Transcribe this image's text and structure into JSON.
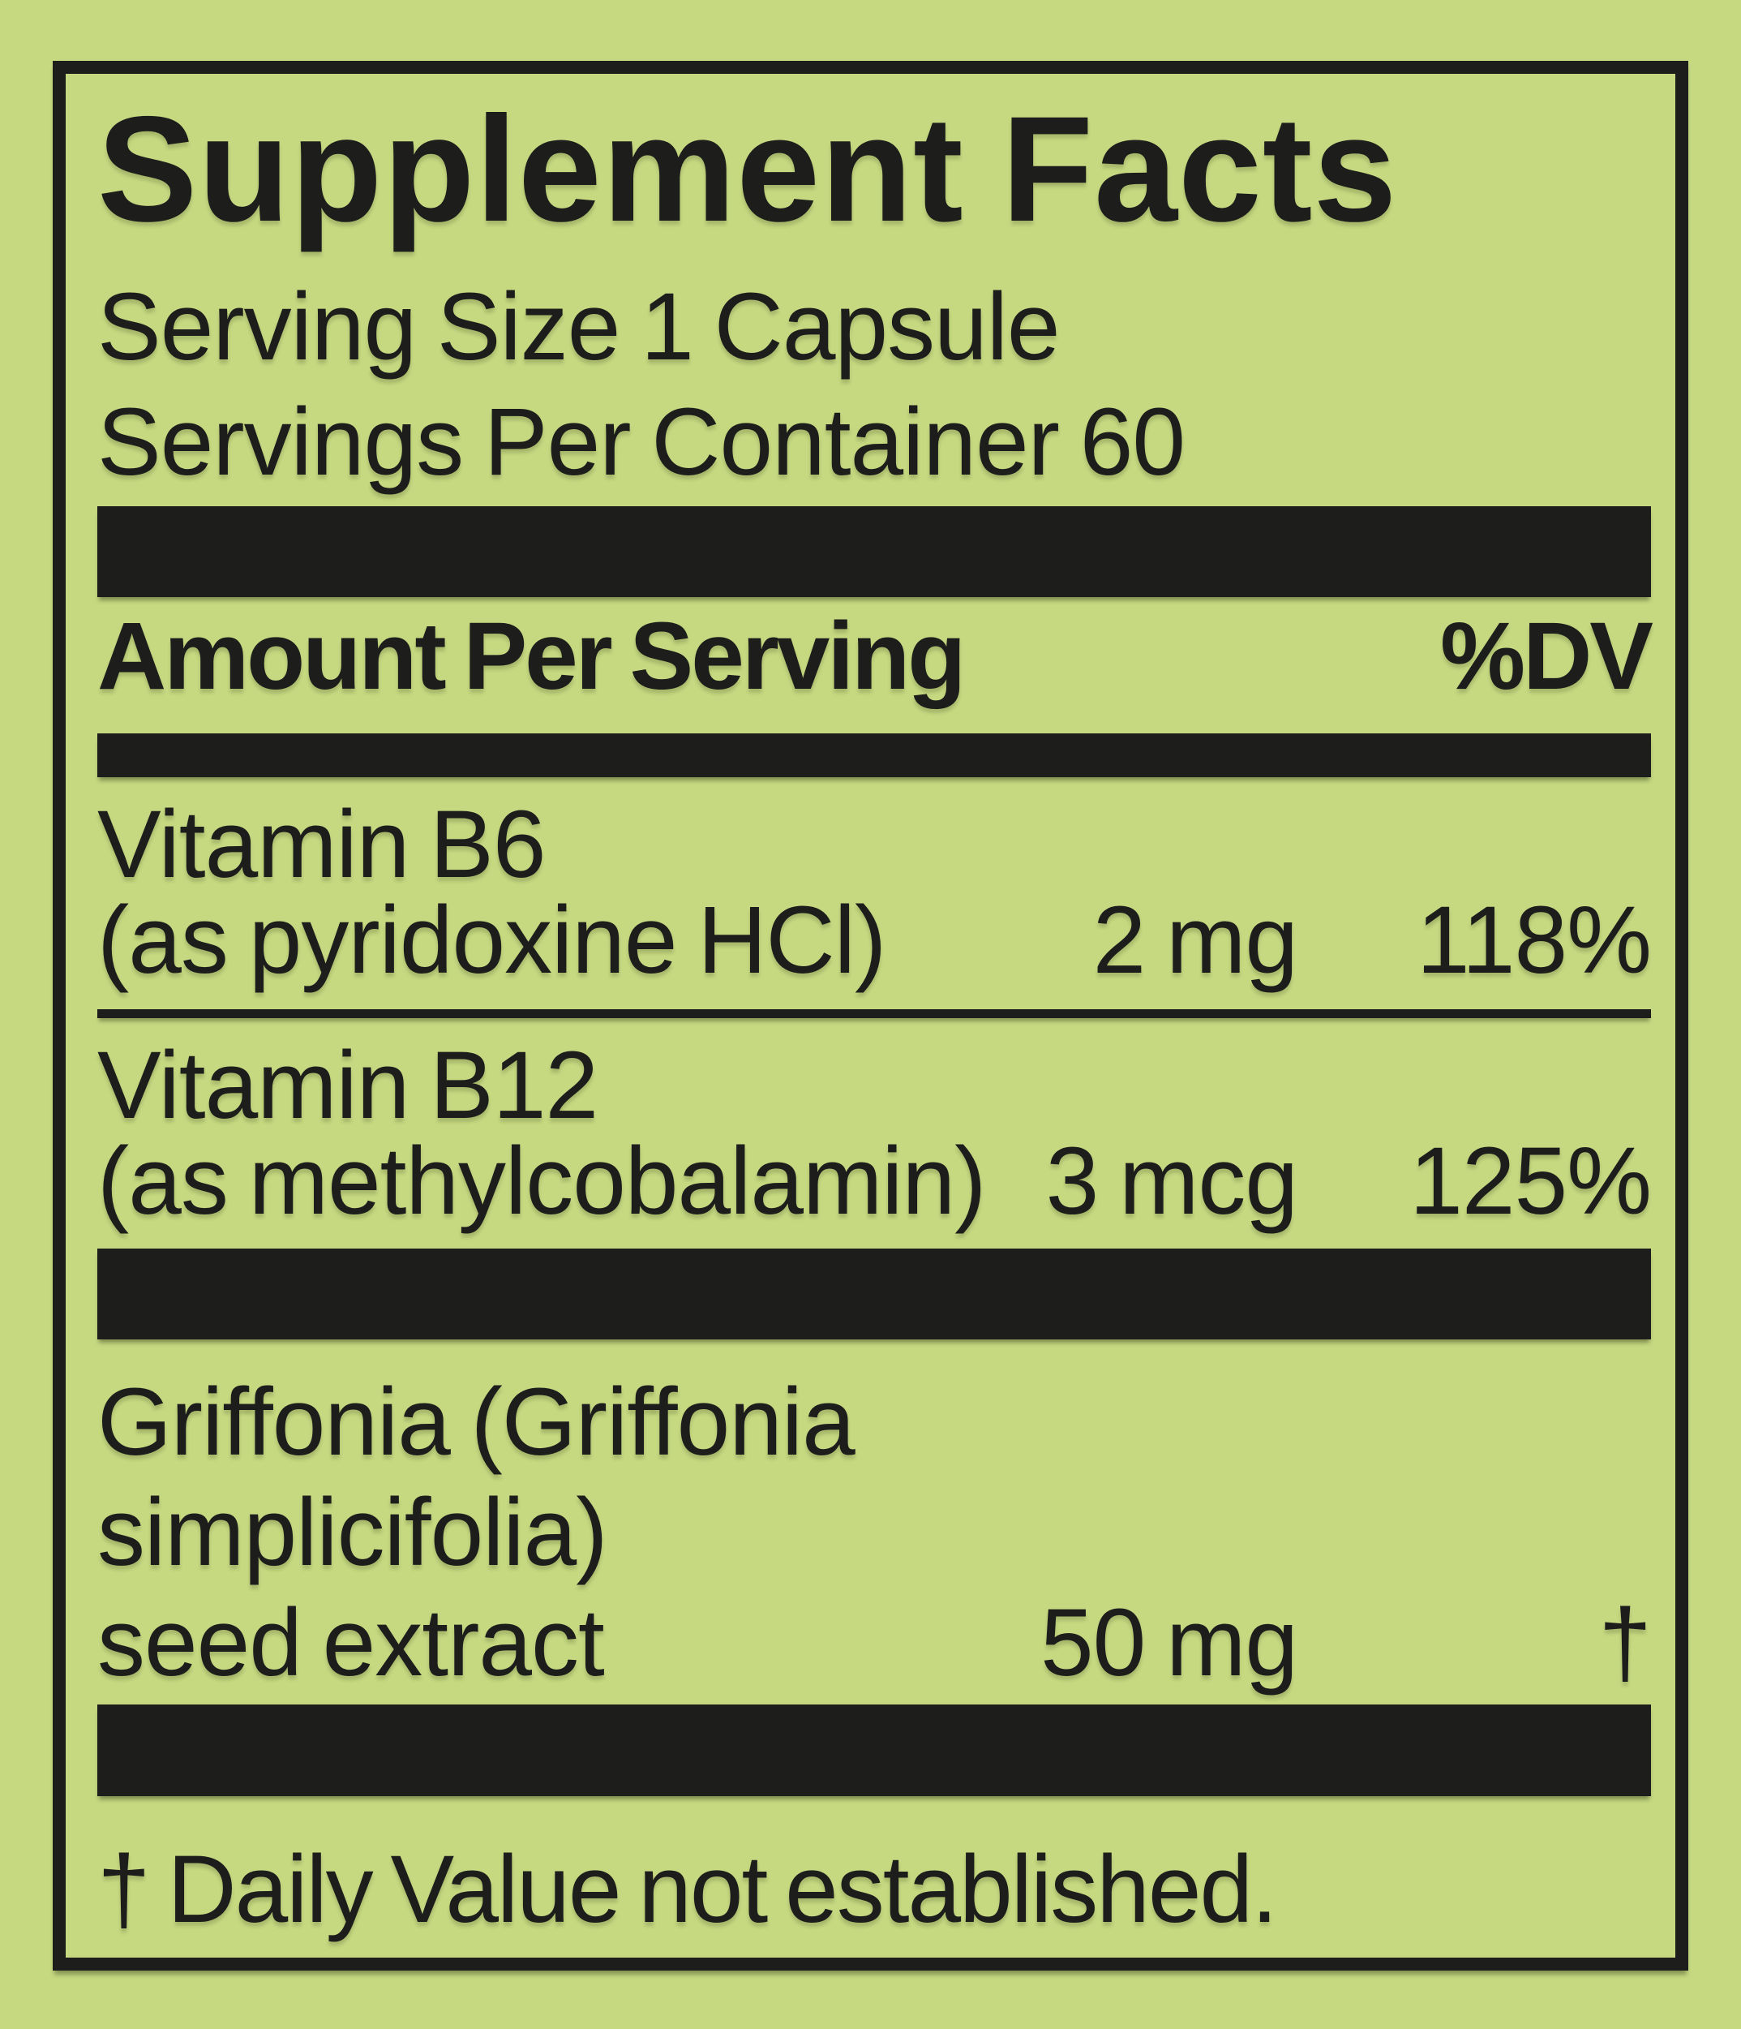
{
  "colors": {
    "background": "#c6d981",
    "ink": "#1d1e1c"
  },
  "label": {
    "title": "Supplement Facts",
    "serving_size": "Serving Size 1 Capsule",
    "servings_per_container": "Servings Per Container 60",
    "columns": {
      "amount_header": "Amount Per Serving",
      "dv_header": "%DV"
    },
    "nutrients": [
      {
        "name_lines": [
          "Vitamin B6",
          "(as pyridoxine HCl)"
        ],
        "amount": "2 mg",
        "daily_value": "118%"
      },
      {
        "name_lines": [
          "Vitamin B12",
          "(as methylcobalamin)"
        ],
        "amount": "3 mcg",
        "daily_value": "125%"
      },
      {
        "name_lines": [
          "Griffonia (Griffonia",
          "simplicifolia)",
          "seed extract"
        ],
        "amount": "50 mg",
        "daily_value": "†"
      }
    ],
    "footnote": "† Daily Value not established."
  }
}
